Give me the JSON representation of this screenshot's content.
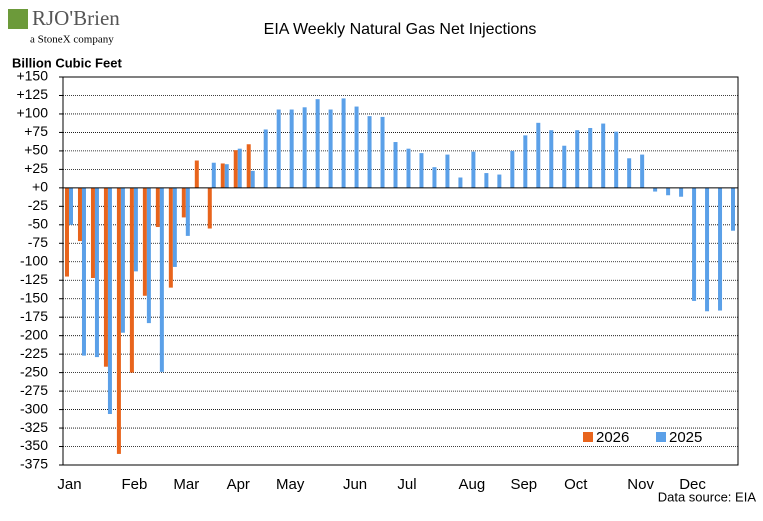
{
  "logo": {
    "brand": "RJO'Brien",
    "tagline": "a StoneX company"
  },
  "chart_data": {
    "type": "bar",
    "title": "EIA Weekly Natural Gas Net Injections",
    "y_label": "Billion Cubic Feet",
    "source": "Data source: EIA",
    "categories": [
      "Jan",
      null,
      null,
      null,
      null,
      "Feb",
      null,
      null,
      null,
      "Mar",
      null,
      null,
      null,
      "Apr",
      null,
      null,
      null,
      "May",
      null,
      null,
      null,
      null,
      "Jun",
      null,
      null,
      null,
      "Jul",
      null,
      null,
      null,
      null,
      "Aug",
      null,
      null,
      null,
      "Sep",
      null,
      null,
      null,
      "Oct",
      null,
      null,
      null,
      null,
      "Nov",
      null,
      null,
      null,
      "Dec",
      null,
      null,
      null
    ],
    "series": [
      {
        "name": "2026",
        "color": "#e8641c",
        "values": [
          -120,
          -72,
          -122,
          -242,
          -360,
          -250,
          -146,
          -53,
          -135,
          -40,
          37,
          -55,
          33,
          51,
          59,
          null,
          null,
          null,
          null,
          null,
          null,
          null,
          null,
          null,
          null,
          null,
          null,
          null,
          null,
          null,
          null,
          null,
          null,
          null,
          null,
          null,
          null,
          null,
          null,
          null,
          null,
          null,
          null,
          null,
          null,
          null,
          null,
          null,
          null,
          null,
          null,
          null
        ]
      },
      {
        "name": "2025",
        "color": "#5ba0e8",
        "values": [
          -50,
          -227,
          -229,
          -306,
          -196,
          -113,
          -183,
          -249,
          -107,
          -65,
          null,
          34,
          32,
          53,
          23,
          79,
          106,
          106,
          109,
          120,
          106,
          121,
          110,
          97,
          96,
          62,
          53,
          47,
          28,
          45,
          14,
          49,
          20,
          18,
          50,
          71,
          88,
          78,
          57,
          78,
          81,
          87,
          76,
          40,
          45,
          -5,
          -10,
          -12,
          -153,
          -167,
          -166,
          -58
        ]
      }
    ],
    "ylim": [
      -375,
      150
    ],
    "yticks": [
      {
        "value": 150,
        "label": "+150"
      },
      {
        "value": 125,
        "label": "+125"
      },
      {
        "value": 100,
        "label": "+100"
      },
      {
        "value": 75,
        "label": "+75"
      },
      {
        "value": 50,
        "label": "+50"
      },
      {
        "value": 25,
        "label": "+25"
      },
      {
        "value": 0,
        "label": "+0"
      },
      -25,
      -50,
      -75,
      -100,
      -125,
      -150,
      -175,
      -200,
      -225,
      -250,
      -275,
      -300,
      -325,
      -350,
      -375
    ],
    "grid": true,
    "legend": "bottom-right"
  }
}
